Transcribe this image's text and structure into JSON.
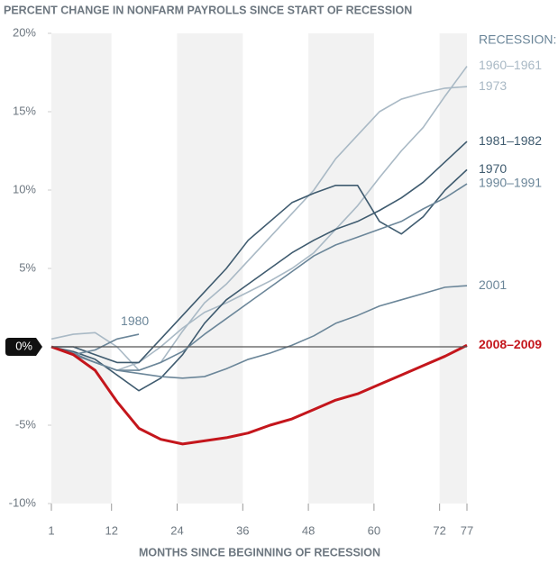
{
  "chart_data": {
    "type": "line",
    "title": "PERCENT CHANGE IN NONFARM PAYROLLS SINCE START OF RECESSION",
    "x_label": "MONTHS SINCE BEGINNING OF RECESSION",
    "legend_title": "RECESSION:",
    "xlim": [
      1,
      77
    ],
    "xticks": [
      1,
      12,
      24,
      36,
      48,
      60,
      72,
      77
    ],
    "ylim": [
      -10,
      20
    ],
    "yticks": [
      {
        "value": 20,
        "label": "20%"
      },
      {
        "value": 15,
        "label": "15%"
      },
      {
        "value": 10,
        "label": "10%"
      },
      {
        "value": 5,
        "label": "5%"
      },
      {
        "value": 0,
        "label": "0%"
      },
      {
        "value": -5,
        "label": "-5%"
      },
      {
        "value": -10,
        "label": "-10%"
      }
    ],
    "series": [
      {
        "name": "1960–1961",
        "color": "#a9b9c5",
        "x": [
          1,
          5,
          9,
          13,
          17,
          21,
          25,
          29,
          33,
          37,
          41,
          45,
          49,
          53,
          57,
          61,
          65,
          69,
          73,
          77
        ],
        "values": [
          0,
          -0.5,
          -1.0,
          -1.5,
          -1.0,
          0,
          1.2,
          2.2,
          2.8,
          3.5,
          4.2,
          5.0,
          6.0,
          7.5,
          9.0,
          10.8,
          12.5,
          14.0,
          16.0,
          17.9
        ]
      },
      {
        "name": "1973",
        "color": "#a9b9c5",
        "x": [
          1,
          5,
          9,
          13,
          17,
          21,
          25,
          29,
          33,
          37,
          41,
          45,
          49,
          53,
          57,
          61,
          65,
          69,
          73,
          77
        ],
        "values": [
          0.5,
          0.8,
          0.9,
          0,
          -1.5,
          -1.0,
          1.0,
          2.8,
          4.0,
          5.5,
          7.0,
          8.5,
          10.0,
          12.0,
          13.5,
          15.0,
          15.8,
          16.2,
          16.5,
          16.6
        ]
      },
      {
        "name": "1981–1982",
        "color": "#3f5b6f",
        "x": [
          1,
          5,
          9,
          13,
          17,
          21,
          25,
          29,
          33,
          37,
          41,
          45,
          49,
          53,
          57,
          61,
          65,
          69,
          73,
          77
        ],
        "values": [
          0,
          -0.3,
          -0.8,
          -1.8,
          -2.8,
          -2.0,
          -0.5,
          1.5,
          3.0,
          4.0,
          5.0,
          6.0,
          6.8,
          7.5,
          8.0,
          8.7,
          9.5,
          10.5,
          11.8,
          13.1
        ]
      },
      {
        "name": "1970",
        "color": "#3f5b6f",
        "x": [
          1,
          5,
          9,
          13,
          17,
          21,
          25,
          29,
          33,
          37,
          41,
          45,
          49,
          53,
          57,
          61,
          65,
          69,
          73,
          77
        ],
        "values": [
          0,
          0,
          -0.5,
          -1.0,
          -1.0,
          0.5,
          2.0,
          3.5,
          5.0,
          6.8,
          8.0,
          9.2,
          9.8,
          10.3,
          10.3,
          8.0,
          7.2,
          8.3,
          10.0,
          11.3
        ]
      },
      {
        "name": "1990–1991",
        "color": "#6b8699",
        "x": [
          1,
          5,
          9,
          13,
          17,
          21,
          25,
          29,
          33,
          37,
          41,
          45,
          49,
          53,
          57,
          61,
          65,
          69,
          73,
          77
        ],
        "values": [
          0,
          -0.4,
          -1.0,
          -1.5,
          -1.5,
          -1.0,
          -0.3,
          0.8,
          1.8,
          2.8,
          3.8,
          4.8,
          5.8,
          6.5,
          7.0,
          7.5,
          8.0,
          8.8,
          9.5,
          10.4
        ]
      },
      {
        "name": "2001",
        "color": "#6b8699",
        "x": [
          1,
          5,
          9,
          13,
          17,
          21,
          25,
          29,
          33,
          37,
          41,
          45,
          49,
          53,
          57,
          61,
          65,
          69,
          73,
          77
        ],
        "values": [
          0,
          -0.5,
          -1.0,
          -1.5,
          -1.7,
          -1.9,
          -2.0,
          -1.9,
          -1.4,
          -0.8,
          -0.4,
          0.1,
          0.7,
          1.5,
          2.0,
          2.6,
          3.0,
          3.4,
          3.8,
          3.9
        ]
      },
      {
        "name": "1980",
        "color": "#6b8699",
        "x": [
          1,
          5,
          9,
          13,
          17
        ],
        "values": [
          0,
          -0.5,
          -0.2,
          0.5,
          0.8
        ]
      },
      {
        "name": "2008–2009",
        "color": "#c4161c",
        "x": [
          1,
          5,
          9,
          13,
          17,
          21,
          25,
          29,
          33,
          37,
          41,
          45,
          49,
          53,
          57,
          61,
          65,
          69,
          73,
          77
        ],
        "values": [
          0,
          -0.5,
          -1.5,
          -3.5,
          -5.2,
          -5.9,
          -6.2,
          -6.0,
          -5.8,
          -5.5,
          -5.0,
          -4.6,
          -4.0,
          -3.4,
          -3.0,
          -2.4,
          -1.8,
          -1.2,
          -0.6,
          0.1
        ]
      }
    ]
  }
}
